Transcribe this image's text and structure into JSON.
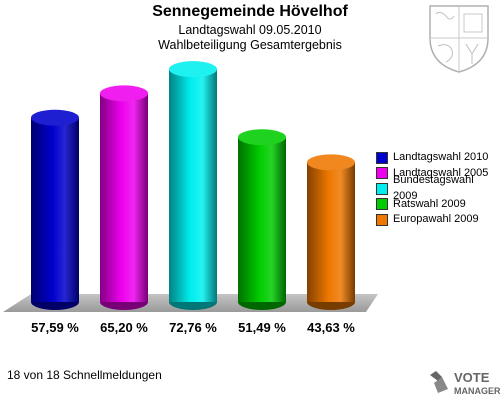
{
  "header": {
    "title": "Sennegemeinde Hövelhof",
    "subtitle_1": "Landtagswahl 09.05.2010",
    "subtitle_2": "Wahlbeteiligung Gesamtergebnis"
  },
  "footer": {
    "status_text": "18 von 18 Schnellmeldungen"
  },
  "brand": {
    "line1": "VOTE",
    "line2": "MANAGER"
  },
  "chart_data": {
    "type": "bar",
    "title": "Sennegemeinde Hövelhof",
    "categories": [
      "Landtagswahl 2010",
      "Landtagswahl 2005",
      "Bundestagswahl 2009",
      "Ratswahl 2009",
      "Europawahl 2009"
    ],
    "values": [
      57.59,
      65.2,
      72.76,
      51.49,
      43.63
    ],
    "value_labels": [
      "57,59 %",
      "65,20 %",
      "72,76 %",
      "51,49 %",
      "43,63 %"
    ],
    "colors": [
      "#0000cc",
      "#ee00ee",
      "#00eeee",
      "#00cc00",
      "#ee7700"
    ],
    "legend_position": "right",
    "grid": false,
    "ylim": [
      0,
      80
    ]
  }
}
